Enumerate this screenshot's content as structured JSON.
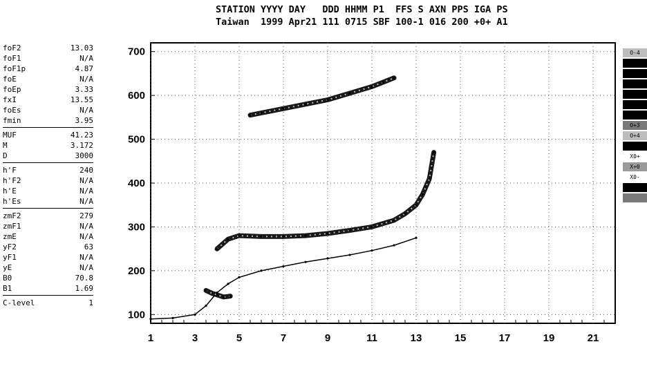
{
  "header": {
    "line1": "STATION YYYY DAY   DDD HHMM P1  FFS S AXN PPS IGA PS",
    "line2": "Taiwan  1999 Apr21 111 0715 SBF 100-1 016 200 +0+ A1"
  },
  "parameters": [
    [
      {
        "name": "foF2",
        "value": "13.03"
      },
      {
        "name": "foF1",
        "value": "N/A"
      },
      {
        "name": "foF1p",
        "value": "4.87"
      },
      {
        "name": "foE",
        "value": "N/A"
      },
      {
        "name": "foEp",
        "value": "3.33"
      },
      {
        "name": "fxI",
        "value": "13.55"
      },
      {
        "name": "foEs",
        "value": "N/A"
      },
      {
        "name": "fmin",
        "value": "3.95"
      }
    ],
    [
      {
        "name": "MUF",
        "value": "41.23"
      },
      {
        "name": "M",
        "value": "3.172"
      },
      {
        "name": "D",
        "value": "3000"
      }
    ],
    [
      {
        "name": "h'F",
        "value": "240"
      },
      {
        "name": "h'F2",
        "value": "N/A"
      },
      {
        "name": "h'E",
        "value": "N/A"
      },
      {
        "name": "h'Es",
        "value": "N/A"
      }
    ],
    [
      {
        "name": "zmF2",
        "value": "279"
      },
      {
        "name": "zmF1",
        "value": "N/A"
      },
      {
        "name": "zmE",
        "value": "N/A"
      },
      {
        "name": "yF2",
        "value": "63"
      },
      {
        "name": "yF1",
        "value": "N/A"
      },
      {
        "name": "yE",
        "value": "N/A"
      },
      {
        "name": "B0",
        "value": "70.8"
      },
      {
        "name": "B1",
        "value": "1.69"
      }
    ],
    [
      {
        "name": "C-level",
        "value": "1"
      }
    ]
  ],
  "legend": [
    {
      "label": "O-4",
      "color": "#bdbdbd",
      "text_color": "#000000"
    },
    {
      "label": "",
      "color": "#000000",
      "text_color": "#ffffff"
    },
    {
      "label": "",
      "color": "#000000",
      "text_color": "#ffffff"
    },
    {
      "label": "",
      "color": "#000000",
      "text_color": "#ffffff"
    },
    {
      "label": "",
      "color": "#000000",
      "text_color": "#ffffff"
    },
    {
      "label": "",
      "color": "#000000",
      "text_color": "#ffffff"
    },
    {
      "label": "",
      "color": "#000000",
      "text_color": "#ffffff"
    },
    {
      "label": "O+3",
      "color": "#7a7a7a",
      "text_color": "#000000"
    },
    {
      "label": "O+4",
      "color": "#bdbdbd",
      "text_color": "#000000"
    },
    {
      "label": "",
      "color": "#000000",
      "text_color": "#ffffff"
    },
    {
      "label": "X0+",
      "color": "#ffffff",
      "text_color": "#000000"
    },
    {
      "label": "X+0",
      "color": "#9a9a9a",
      "text_color": "#000000"
    },
    {
      "label": "X0-",
      "color": "#ffffff",
      "text_color": "#000000"
    },
    {
      "label": "",
      "color": "#000000",
      "text_color": "#ffffff"
    },
    {
      "label": "",
      "color": "#7a7a7a",
      "text_color": "#000000"
    }
  ],
  "chart_data": {
    "type": "scatter",
    "title": "",
    "xlabel": "",
    "ylabel": "",
    "xlim": [
      1,
      22
    ],
    "ylim": [
      80,
      720
    ],
    "x_ticks": [
      1,
      3,
      5,
      7,
      9,
      11,
      13,
      15,
      17,
      19,
      21
    ],
    "y_ticks": [
      100,
      200,
      300,
      400,
      500,
      600,
      700
    ],
    "grid": true,
    "series": [
      {
        "style": "line",
        "x": [
          1.0,
          2.0,
          3.0,
          3.5,
          4.0,
          4.5,
          5.0,
          6.0,
          7.0,
          8.0,
          9.0,
          10.0,
          11.0,
          12.0,
          13.0
        ],
        "y": [
          90,
          92,
          100,
          120,
          150,
          170,
          185,
          200,
          210,
          220,
          228,
          236,
          246,
          258,
          275
        ]
      },
      {
        "style": "trace",
        "x": [
          4.0,
          4.5,
          5.0,
          6.0,
          7.0,
          8.0,
          9.0,
          10.0,
          11.0,
          12.0,
          12.5,
          13.0,
          13.3,
          13.6,
          13.8
        ],
        "y": [
          250,
          272,
          280,
          278,
          278,
          280,
          285,
          292,
          300,
          315,
          330,
          350,
          375,
          410,
          470
        ]
      },
      {
        "style": "trace",
        "x": [
          5.5,
          6.0,
          7.0,
          8.0,
          9.0,
          10.0,
          11.0,
          11.5,
          12.0
        ],
        "y": [
          555,
          560,
          570,
          580,
          590,
          605,
          620,
          630,
          640
        ]
      },
      {
        "style": "trace",
        "x": [
          3.5,
          3.8,
          4.0,
          4.3,
          4.6
        ],
        "y": [
          155,
          148,
          145,
          140,
          142
        ]
      }
    ]
  }
}
